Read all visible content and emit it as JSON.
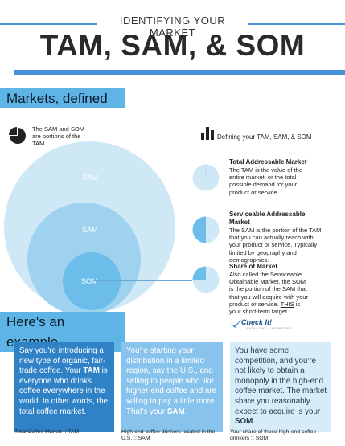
{
  "header": {
    "eyebrow": "IDENTIFYING YOUR MARKET",
    "title": "TAM, SAM, & SOM"
  },
  "section_markets": {
    "label": "Markets, defined"
  },
  "pie_intro": {
    "icon": "pie-chart-icon",
    "text": "The SAM and SOM are portions of the TAM"
  },
  "bar_intro": {
    "icon": "bar-chart-icon",
    "text": "Defining your TAM, SAM, & SOM"
  },
  "circles": {
    "tam_label": "TAM",
    "sam_label": "SAM",
    "som_label": "SOM",
    "tam_color": "#cfe8f6",
    "sam_color": "#9fd2ef",
    "som_color": "#6cbde9"
  },
  "definitions": [
    {
      "title": "Total Addressable Market",
      "body": "The TAM is the value of the entire market, or the total possible demand for your product or service.",
      "share": 0.0
    },
    {
      "title": "Serviceable Addressable Market",
      "body": "The SAM is the portion of the TAM that you can actually reach with your product or service. Typically limited by geography and demographics.",
      "share": 0.5
    },
    {
      "title": "Share of Market",
      "body_pre": "Also called the Serviceable Obtainable Market, the SOM is the portion of the SAM that that you will acquire with your product or service. ",
      "body_em": "THIS",
      "body_post": " is your short-term target.",
      "share": 0.25
    }
  ],
  "section_example": {
    "label": "Here's an example"
  },
  "logo": {
    "name": "Check It!",
    "tagline": "PACKAGING & MARKETING",
    "icon": "check-swoosh-icon"
  },
  "examples": [
    {
      "pre": "Say you're introducing a new type of organic, fair-trade coffee. Your ",
      "strong": "TAM",
      "post": " is everyone who drinks coffee everywhere in the world. In other words, the total coffee market.",
      "caption": "Total Coffee Market :: TAM",
      "bg": "#2f82c6",
      "fg": "#ffffff"
    },
    {
      "pre": "You're starting your distribution in a limited region, say the U.S., and selling to people who like higher-end coffee and are willing to pay a little more. That's your ",
      "strong": "SAM",
      "post": ".",
      "caption": "High-end coffee drinkers located in the U.S. :: SAM",
      "bg": "#87c3ec",
      "fg": "#ffffff"
    },
    {
      "pre": "You have some competition, and you're not likely to obtain a monopoly in the high-end coffee market. The market share you reasonably expect to acquire is your ",
      "strong": "SOM",
      "post": ".",
      "caption": "Your share of those high-end coffee drinkers :: SOM",
      "bg": "#d6ecf8",
      "fg": "#2a3a48"
    }
  ]
}
